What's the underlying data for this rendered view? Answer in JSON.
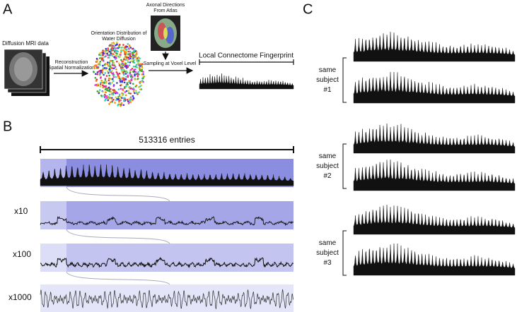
{
  "panels": {
    "a": {
      "label": "A",
      "mri_caption": "Diffusion MRI data",
      "reconstruction": [
        "Reconstruction",
        "Spatial Normalization"
      ],
      "odf_caption": [
        "Orientation Distribution of",
        "Water Diffusion"
      ],
      "atlas_caption": [
        "Axonal Directions",
        "From Atlas"
      ],
      "sampling": "Sampling at Voxel Level",
      "fingerprint_caption": "Local Connectome Fingerprint"
    },
    "b": {
      "label": "B",
      "entries": "513316 entries",
      "zooms": [
        "x10",
        "x100",
        "x1000"
      ]
    },
    "c": {
      "label": "C",
      "groups": [
        [
          "same",
          "subject",
          "#1"
        ],
        [
          "same",
          "subject",
          "#2"
        ],
        [
          "same",
          "subject",
          "#3"
        ]
      ]
    }
  }
}
